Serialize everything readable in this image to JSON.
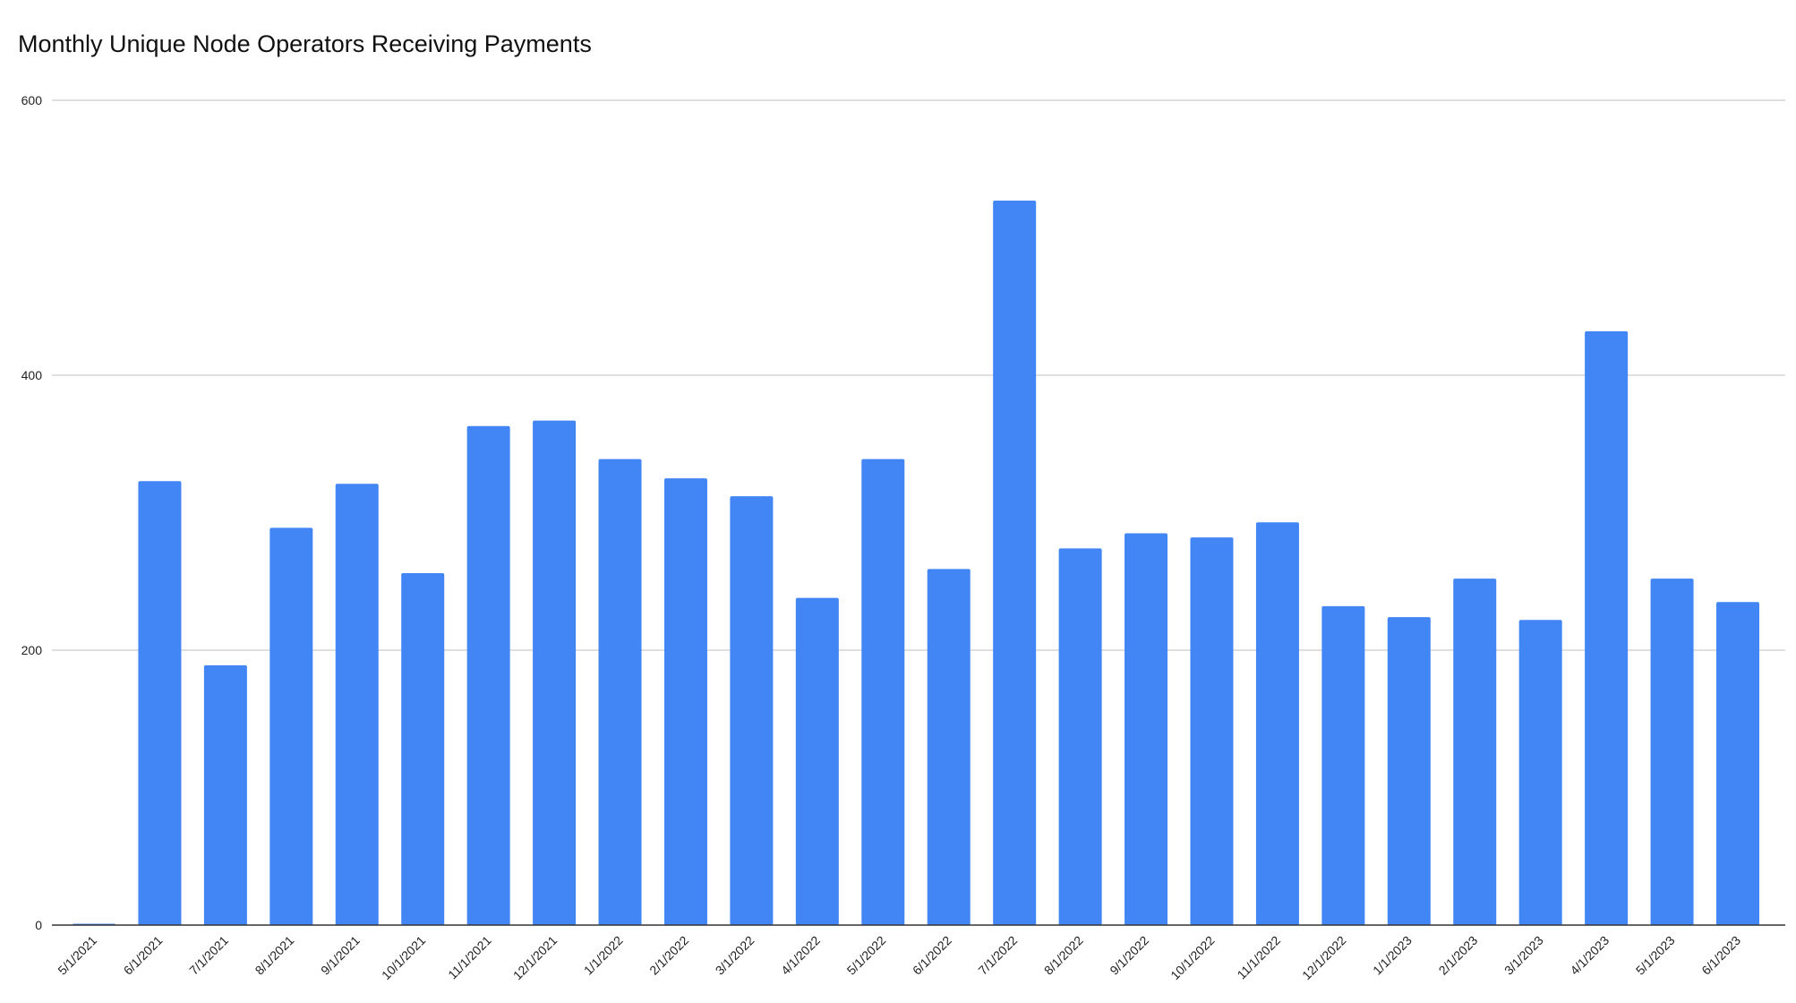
{
  "chart_data": {
    "type": "bar",
    "title": "Monthly Unique Node Operators Receiving Payments",
    "xlabel": "",
    "ylabel": "",
    "ylim": [
      0,
      600
    ],
    "yticks": [
      0,
      200,
      400,
      600
    ],
    "grid": true,
    "bar_color": "#4285F4",
    "categories": [
      "5/1/2021",
      "6/1/2021",
      "7/1/2021",
      "8/1/2021",
      "9/1/2021",
      "10/1/2021",
      "11/1/2021",
      "12/1/2021",
      "1/1/2022",
      "2/1/2022",
      "3/1/2022",
      "4/1/2022",
      "5/1/2022",
      "6/1/2022",
      "7/1/2022",
      "8/1/2022",
      "9/1/2022",
      "10/1/2022",
      "11/1/2022",
      "12/1/2022",
      "1/1/2023",
      "2/1/2023",
      "3/1/2023",
      "4/1/2023",
      "5/1/2023",
      "6/1/2023"
    ],
    "values": [
      1,
      323,
      189,
      289,
      321,
      256,
      363,
      367,
      339,
      325,
      312,
      238,
      339,
      259,
      527,
      274,
      285,
      282,
      293,
      232,
      224,
      252,
      222,
      432,
      252,
      235
    ]
  }
}
